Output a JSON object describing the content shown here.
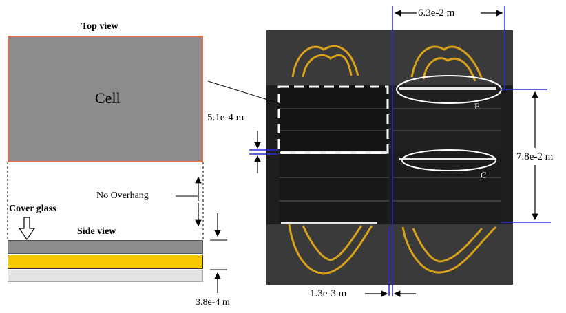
{
  "top_view": {
    "title": "Top view",
    "cell_label": "Cell"
  },
  "side_view": {
    "title": "Side view",
    "cover_glass_label": "Cover glass",
    "overhang_label": "No Overhang"
  },
  "dimensions": {
    "cell_width": "6.3e-2 m",
    "cell_height": "7.8e-2 m",
    "vertical_gap": "5.1e-4 m",
    "horizontal_gap": "1.3e-3 m",
    "cover_glass_thickness": "3.8e-4 m"
  },
  "photo_markers": {
    "e": "E",
    "c": "C"
  },
  "colors": {
    "cell_fill": "#8c8c8c",
    "cell_border": "#e8714a",
    "adhesive": "#f7c800",
    "photo_bg": "#1e1e1e",
    "dimension_line": "#2a2ad6"
  }
}
